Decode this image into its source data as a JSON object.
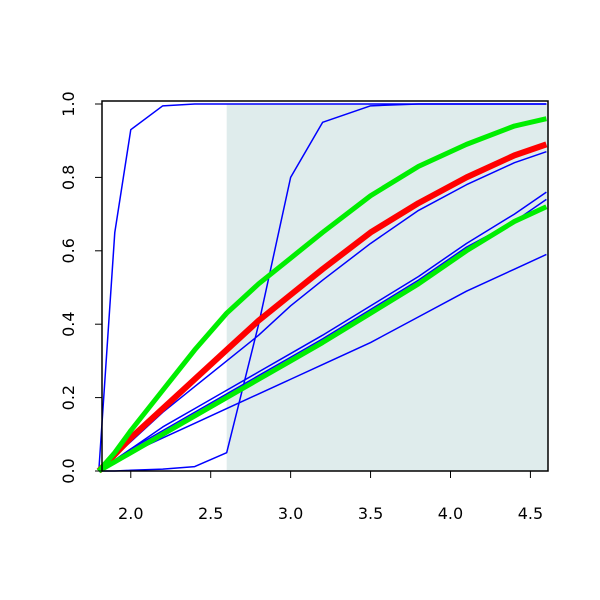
{
  "chart_data": {
    "type": "line",
    "x": [
      1.8,
      1.9,
      2.0,
      2.2,
      2.4,
      2.6,
      2.8,
      3.0,
      3.2,
      3.5,
      3.8,
      4.1,
      4.4,
      4.6
    ],
    "series": [
      {
        "color": "#0000ff",
        "width": 1.5,
        "values": [
          0,
          0.65,
          0.93,
          0.995,
          1,
          1,
          1,
          1,
          1,
          1,
          1,
          1,
          1,
          1
        ]
      },
      {
        "color": "#0000ff",
        "width": 1.5,
        "values": [
          0,
          0,
          0.002,
          0.005,
          0.012,
          0.05,
          0.4,
          0.8,
          0.95,
          0.995,
          1,
          1,
          1,
          1
        ]
      },
      {
        "color": "#0000ff",
        "width": 1.5,
        "values": [
          0,
          0.04,
          0.08,
          0.16,
          0.23,
          0.3,
          0.37,
          0.45,
          0.52,
          0.62,
          0.71,
          0.78,
          0.84,
          0.87
        ]
      },
      {
        "color": "#0000ff",
        "width": 1.5,
        "values": [
          0,
          0.03,
          0.06,
          0.12,
          0.17,
          0.22,
          0.27,
          0.32,
          0.37,
          0.45,
          0.53,
          0.62,
          0.7,
          0.76
        ]
      },
      {
        "color": "#0000ff",
        "width": 1.5,
        "values": [
          0,
          0.03,
          0.06,
          0.11,
          0.16,
          0.21,
          0.26,
          0.31,
          0.36,
          0.44,
          0.52,
          0.61,
          0.68,
          0.74
        ]
      },
      {
        "color": "#0000ff",
        "width": 1.5,
        "values": [
          0,
          0.02,
          0.05,
          0.09,
          0.13,
          0.17,
          0.21,
          0.25,
          0.29,
          0.35,
          0.42,
          0.49,
          0.55,
          0.59
        ]
      },
      {
        "color": "#ff0000",
        "width": 6,
        "values": [
          0,
          0.045,
          0.09,
          0.17,
          0.25,
          0.33,
          0.41,
          0.48,
          0.55,
          0.65,
          0.73,
          0.8,
          0.86,
          0.89
        ]
      },
      {
        "color": "#00ee00",
        "width": 5,
        "values": [
          0,
          0.05,
          0.11,
          0.22,
          0.33,
          0.43,
          0.51,
          0.58,
          0.65,
          0.75,
          0.83,
          0.89,
          0.94,
          0.96
        ]
      },
      {
        "color": "#00ee00",
        "width": 5,
        "values": [
          0,
          0.025,
          0.05,
          0.1,
          0.15,
          0.2,
          0.25,
          0.3,
          0.35,
          0.43,
          0.51,
          0.6,
          0.68,
          0.72
        ]
      }
    ],
    "shaded_region": {
      "xmin": 2.6,
      "xmax": 4.61,
      "color": "#dfecec"
    },
    "xlim": [
      1.82,
      4.61
    ],
    "ylim": [
      0,
      1.0
    ],
    "xticks": [
      {
        "value": 2,
        "label": "2.0"
      },
      2.5,
      {
        "value": 3,
        "label": "3.0"
      },
      3.5,
      {
        "value": 4,
        "label": "4.0"
      },
      4.5
    ],
    "yticks": [
      {
        "value": 0,
        "label": "0.0"
      },
      0.2,
      0.4,
      0.6,
      0.8,
      {
        "value": 1,
        "label": "1.0"
      }
    ]
  }
}
